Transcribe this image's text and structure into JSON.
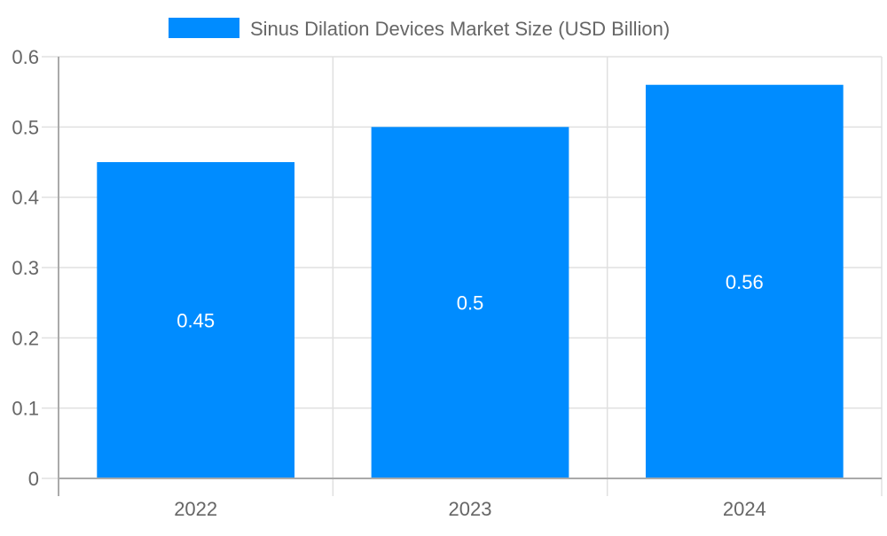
{
  "chart_data": {
    "type": "bar",
    "title": "",
    "categories": [
      "2022",
      "2023",
      "2024"
    ],
    "series": [
      {
        "name": "Sinus Dilation Devices Market Size (USD Billion)",
        "values": [
          0.45,
          0.5,
          0.56
        ],
        "color": "#008cff"
      }
    ],
    "data_labels": [
      "0.45",
      "0.5",
      "0.56"
    ],
    "ylim": [
      0,
      0.6
    ],
    "yticks": [
      "0",
      "0.1",
      "0.2",
      "0.3",
      "0.4",
      "0.5",
      "0.6"
    ],
    "xlabel": "",
    "ylabel": "",
    "grid": true,
    "legend_position": "top"
  }
}
